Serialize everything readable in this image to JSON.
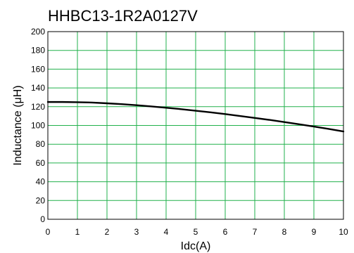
{
  "chart_data": {
    "type": "line",
    "title": "HHBC13-1R2A0127V",
    "xlabel": "Idc(A)",
    "ylabel": "Inductance (μH)",
    "xlim": [
      0,
      10
    ],
    "ylim": [
      0,
      200
    ],
    "x_ticks": [
      "0",
      "1",
      "2",
      "3",
      "4",
      "5",
      "6",
      "7",
      "8",
      "9",
      "10"
    ],
    "y_ticks": [
      "0",
      "20",
      "40",
      "60",
      "80",
      "100",
      "120",
      "140",
      "160",
      "180",
      "200"
    ],
    "grid": true,
    "grid_color": "#22b14c",
    "line_color": "#000000",
    "series": [
      {
        "x": [
          0,
          0.5,
          1,
          1.5,
          2,
          2.5,
          3,
          3.5,
          4,
          4.5,
          5,
          5.5,
          6,
          6.5,
          7,
          7.5,
          8,
          8.5,
          9,
          9.5,
          10
        ],
        "values": [
          125,
          125,
          124.8,
          124.4,
          123.6,
          122.7,
          121.6,
          120.3,
          118.9,
          117.4,
          115.7,
          114,
          112.1,
          110.1,
          108,
          105.9,
          103.6,
          101.3,
          98.8,
          96.3,
          93.6
        ]
      }
    ]
  }
}
